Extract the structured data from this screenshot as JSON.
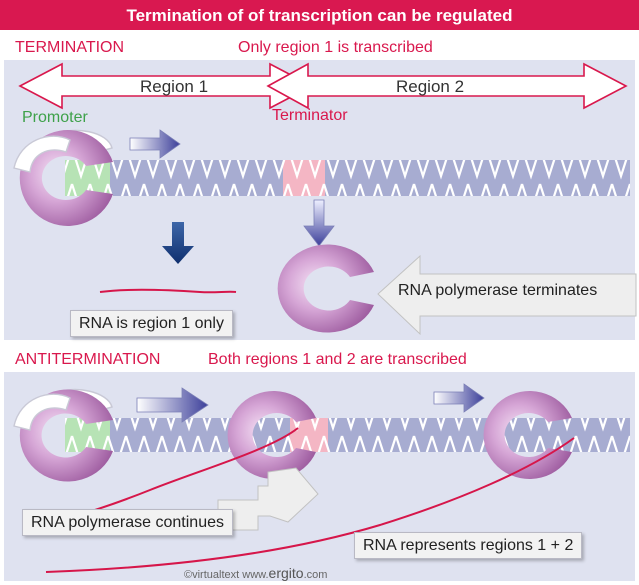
{
  "header": {
    "title": "Termination of of transcription can be regulated",
    "bar_color": "#d91850"
  },
  "termination": {
    "heading": "TERMINATION",
    "subheading": "Only region 1 is transcribed",
    "region1_label": "Region 1",
    "region2_label": "Region 2",
    "promoter_label": "Promoter",
    "terminator_label": "Terminator",
    "rna_label": "RNA is region 1 only",
    "polymerase_label": "RNA polymerase terminates"
  },
  "antitermination": {
    "heading": "ANTITERMINATION",
    "subheading": "Both regions 1 and 2 are transcribed",
    "continues_label": "RNA polymerase continues",
    "rna_label": "RNA represents regions 1 + 2"
  },
  "footer": {
    "credit_prefix": "©virtualtext",
    "credit_www": "www.",
    "credit_brand": "ergito",
    "credit_suffix": ".com"
  },
  "colors": {
    "section_background": "#dfe2f0",
    "heading_red": "#d9184d",
    "promoter_green": "#3ea14a",
    "dna_blue": "#a7acd1",
    "polymerase_purple": "#c28bc2",
    "rna_red": "#d6164a"
  }
}
